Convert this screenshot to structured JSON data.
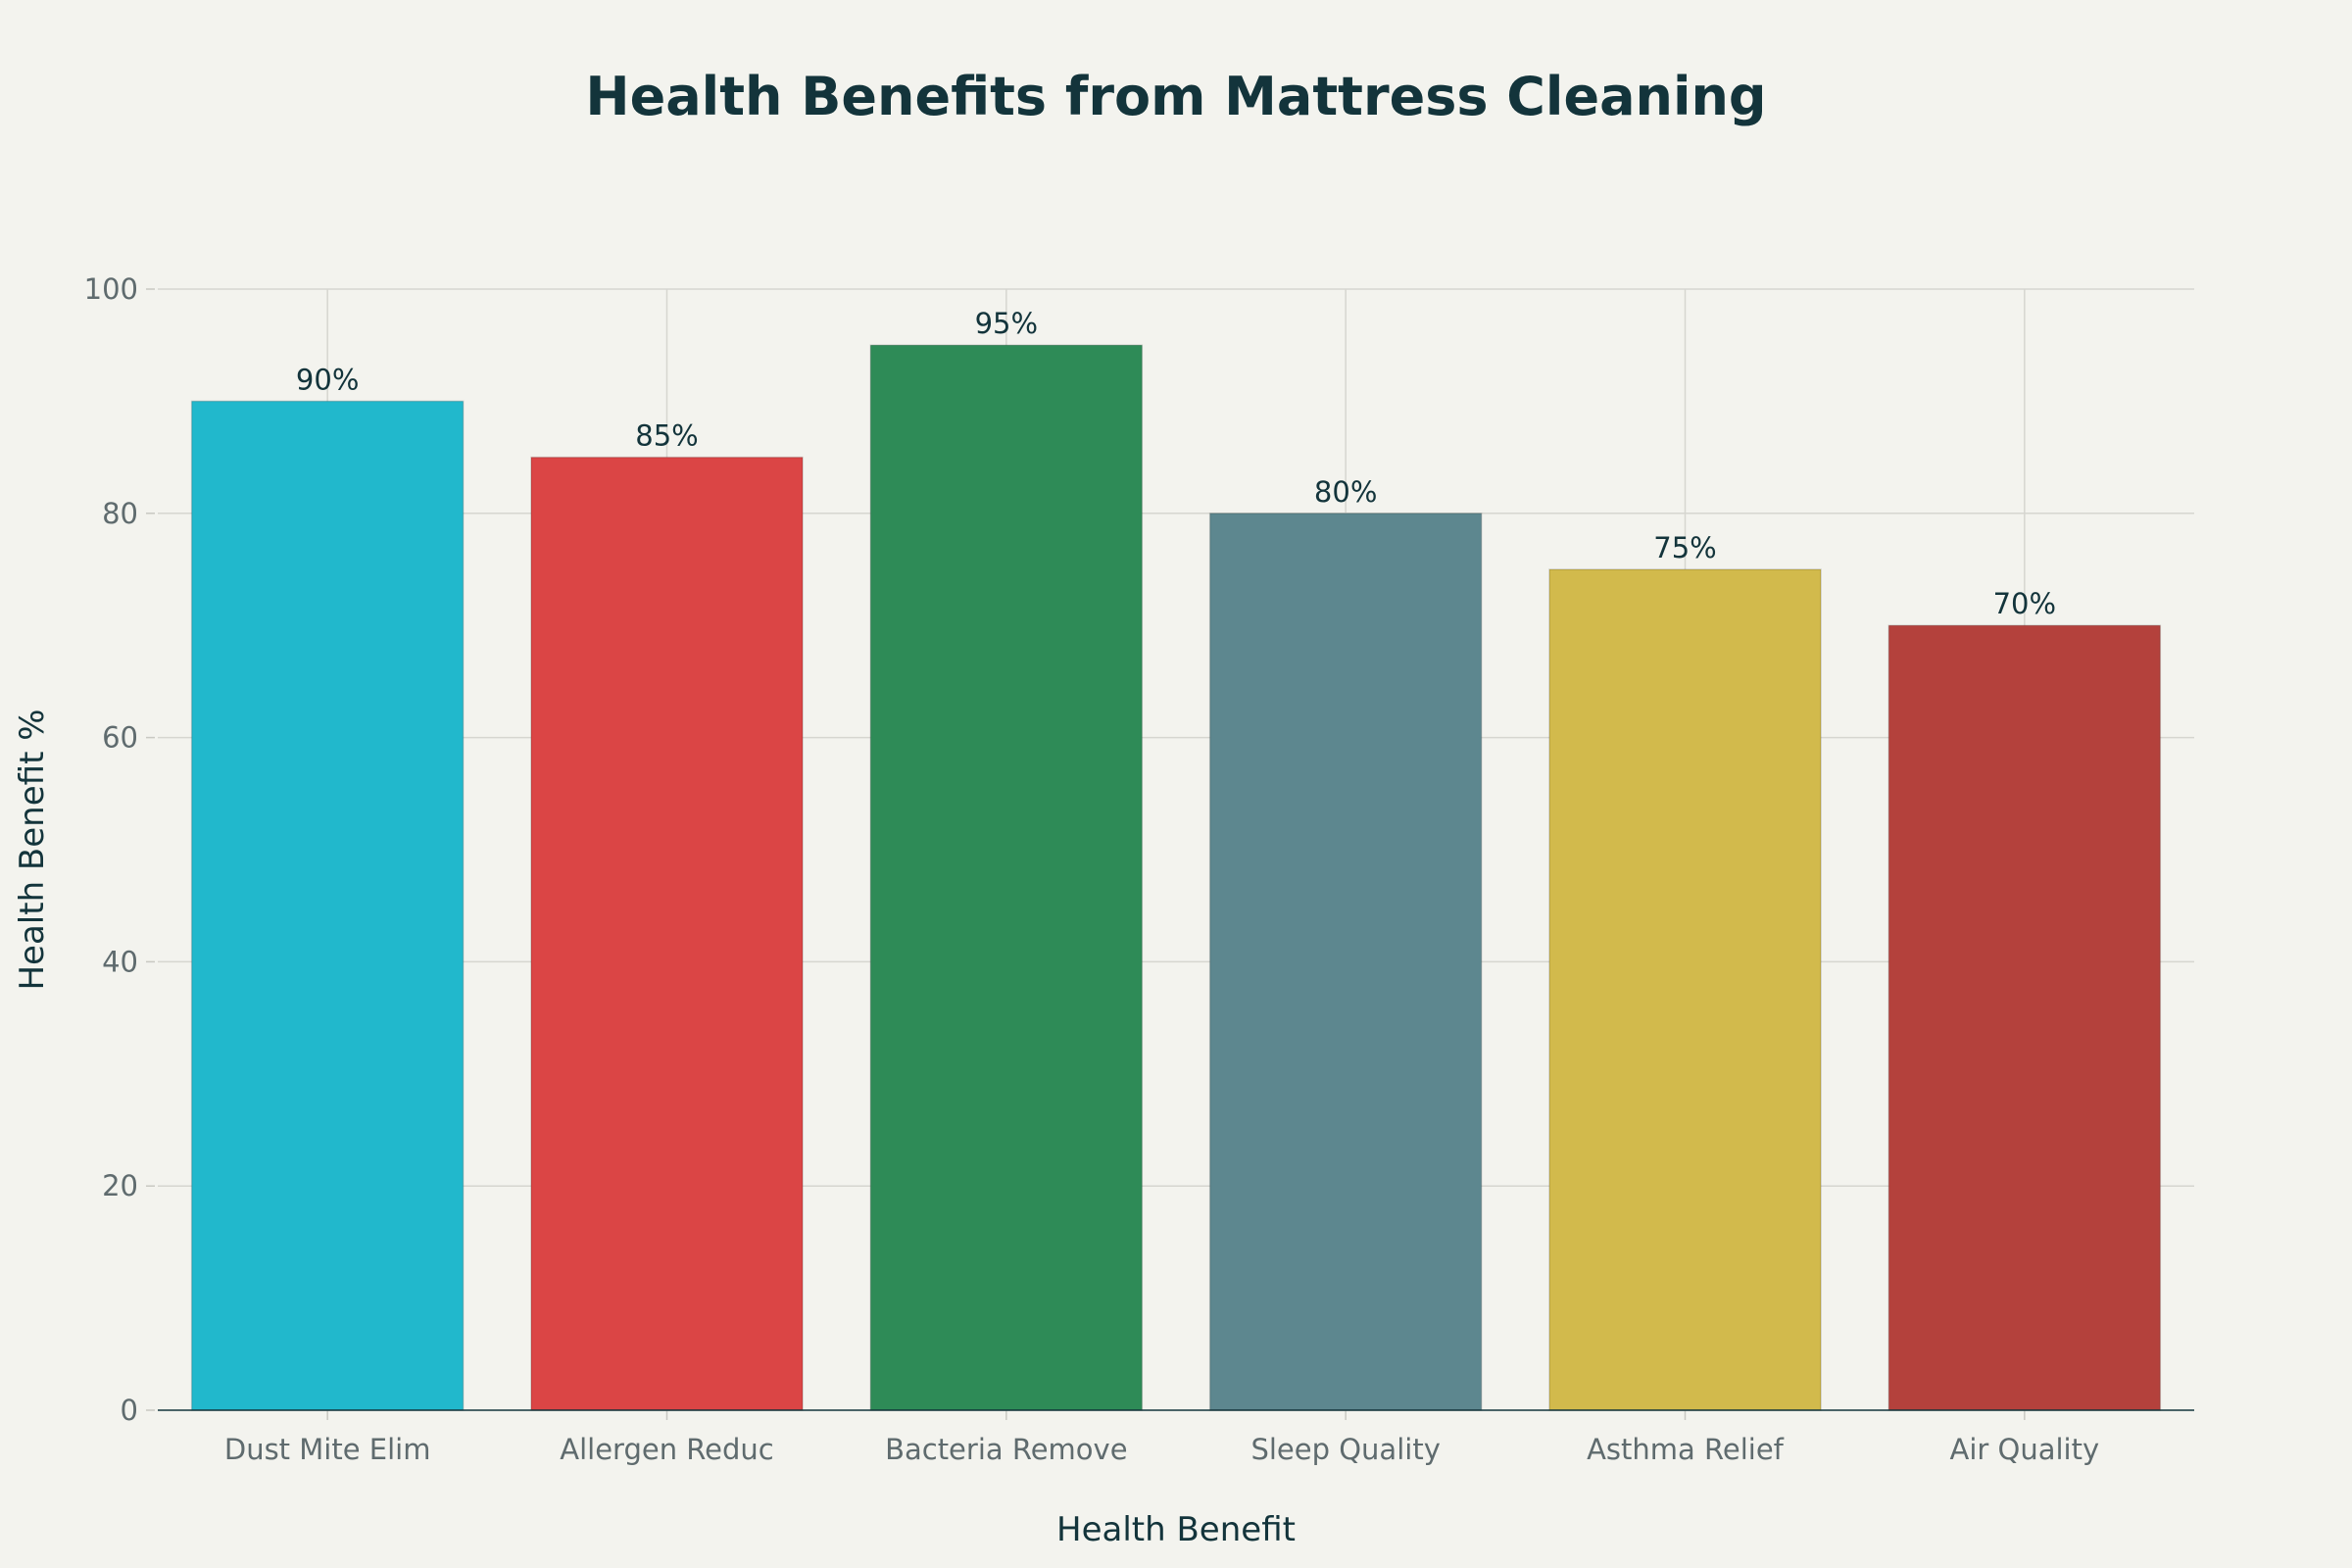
{
  "chart_data": {
    "type": "bar",
    "title": "Health Benefits from Mattress Cleaning",
    "xlabel": "Health Benefit",
    "ylabel": "Health Benefit %",
    "categories": [
      "Dust Mite Elim",
      "Allergen Reduc",
      "Bacteria Remove",
      "Sleep Quality",
      "Asthma Relief",
      "Air Quality"
    ],
    "values": [
      90,
      85,
      95,
      80,
      75,
      70
    ],
    "data_labels": [
      "90%",
      "85%",
      "95%",
      "80%",
      "75%",
      "70%"
    ],
    "colors": [
      "#21B8CC",
      "#DB4545",
      "#2E8B57",
      "#5D878F",
      "#D2BA4C",
      "#B4413C"
    ],
    "ylim": [
      0,
      100
    ],
    "yticks": [
      0,
      20,
      40,
      60,
      80,
      100
    ],
    "grid": true,
    "legend": "none"
  }
}
